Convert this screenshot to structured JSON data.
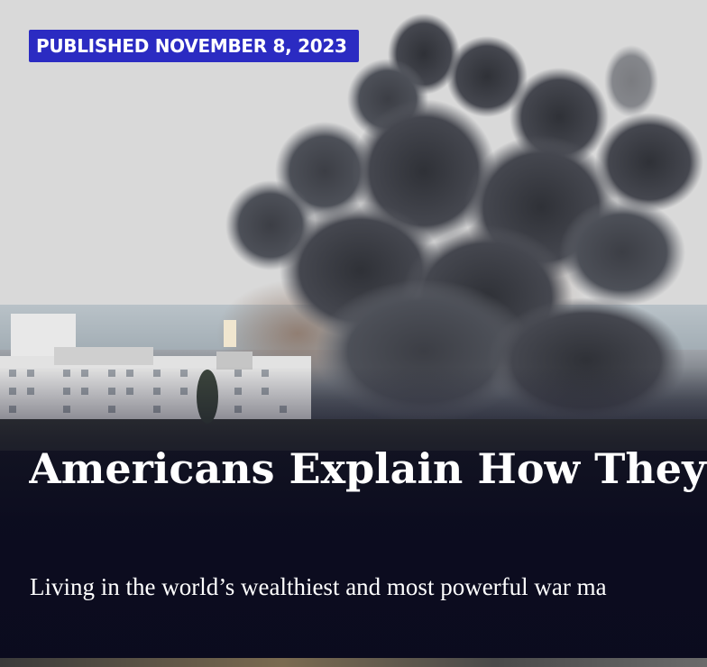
{
  "article": {
    "published_label": "PUBLISHED NOVEMBER 8, 2023",
    "headline": "Americans Explain How They",
    "dek": "Living in the world’s wealthiest and most powerful war ma"
  },
  "colors": {
    "badge_bg": "#2b2bc2",
    "text": "#ffffff",
    "overlay": "#0c0c1e"
  }
}
